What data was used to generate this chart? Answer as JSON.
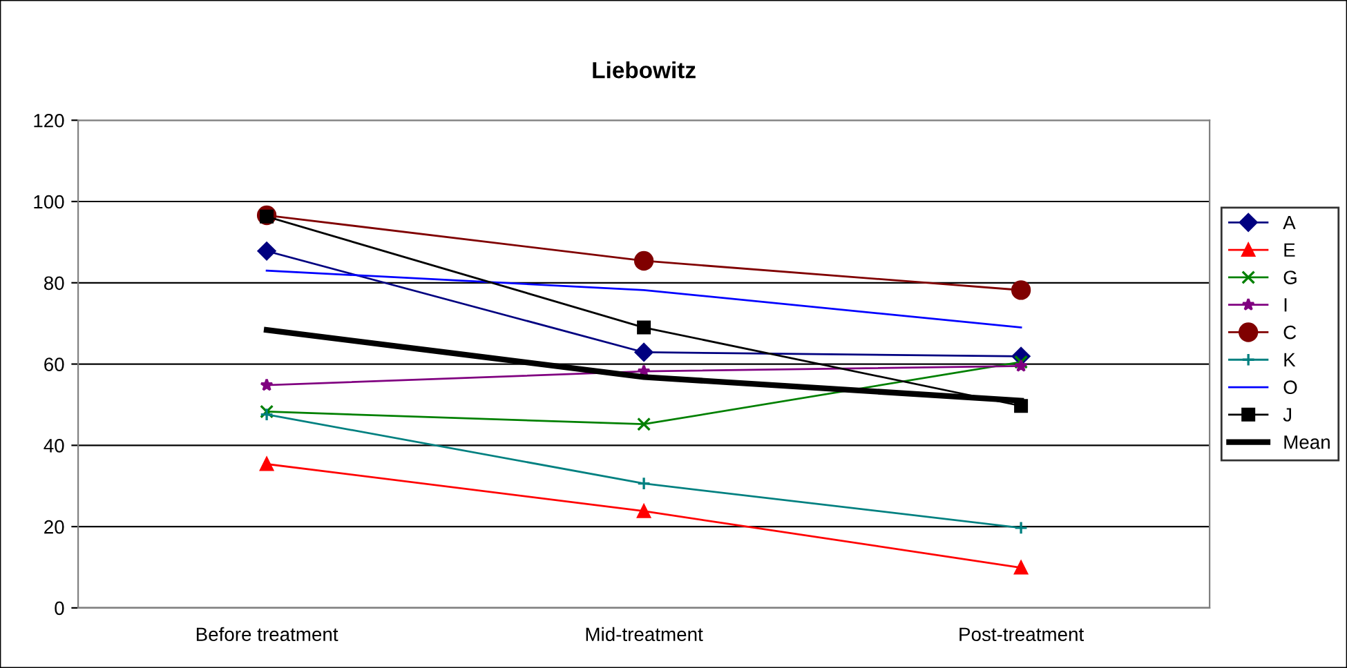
{
  "chart_data": {
    "type": "line",
    "title": "Liebowitz",
    "categories": [
      "Before treatment",
      "Mid-treatment",
      "Post-treatment"
    ],
    "series": [
      {
        "name": "A",
        "color": "#000080",
        "marker": "diamond",
        "values": [
          87.8,
          62.9,
          61.9
        ]
      },
      {
        "name": "E",
        "color": "#ff0000",
        "marker": "triangle",
        "values": [
          35.4,
          23.8,
          9.9
        ]
      },
      {
        "name": "G",
        "color": "#008000",
        "marker": "x",
        "values": [
          48.3,
          45.2,
          60.5
        ]
      },
      {
        "name": "I",
        "color": "#800080",
        "marker": "star",
        "values": [
          54.8,
          58.2,
          59.5
        ]
      },
      {
        "name": "C",
        "color": "#800000",
        "marker": "circle",
        "values": [
          96.6,
          85.4,
          78.2
        ]
      },
      {
        "name": "K",
        "color": "#008080",
        "marker": "plus",
        "values": [
          47.6,
          30.6,
          19.7
        ]
      },
      {
        "name": "O",
        "color": "#0000ff",
        "marker": "none",
        "values": [
          83.0,
          78.2,
          69.0
        ]
      },
      {
        "name": "J",
        "color": "#000000",
        "marker": "square",
        "values": [
          96.3,
          69.0,
          49.7
        ]
      },
      {
        "name": "Mean",
        "color": "#000000",
        "marker": "none",
        "line_style": "solid",
        "values": [
          68.4,
          56.8,
          51.0
        ]
      }
    ],
    "ylim": [
      0,
      120
    ],
    "yticks": [
      0,
      20,
      40,
      60,
      80,
      100,
      120
    ],
    "grid": "y",
    "legend": "right"
  }
}
